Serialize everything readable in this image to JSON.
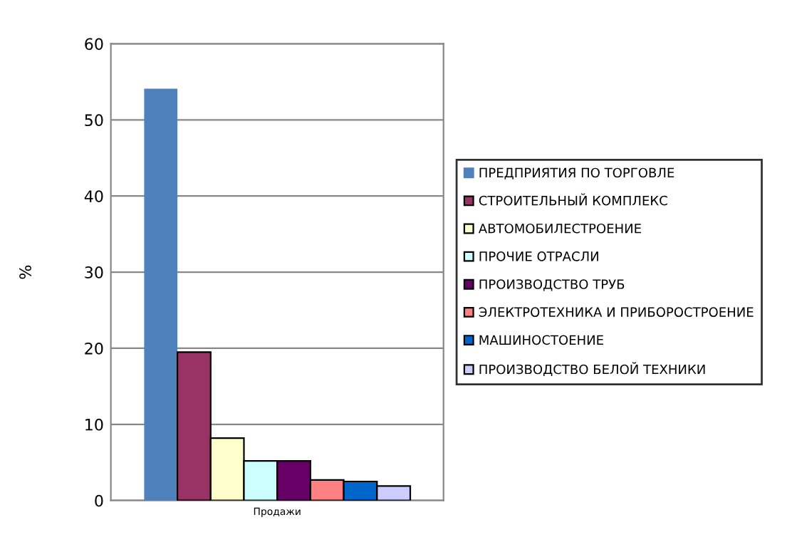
{
  "chart_data": {
    "type": "bar",
    "categories": [
      "Продажи"
    ],
    "ylabel": "%",
    "ylim": [
      0,
      60
    ],
    "yticks": [
      0,
      10,
      20,
      30,
      40,
      50,
      60
    ],
    "grid": "y",
    "legend": "right",
    "series": [
      {
        "name": "ПРЕДПРИЯТИЯ ПО ТОРГОВЛЕ",
        "color": "#4f81bd",
        "values": [
          54.1
        ]
      },
      {
        "name": "СТРОИТЕЛЬНЫЙ КОМПЛЕКС",
        "color": "#993366",
        "values": [
          19.5
        ]
      },
      {
        "name": "АВТОМОБИЛЕСТРОЕНИЕ",
        "color": "#ffffcc",
        "values": [
          8.2
        ]
      },
      {
        "name": "ПРОЧИЕ ОТРАСЛИ",
        "color": "#ccffff",
        "values": [
          5.2
        ]
      },
      {
        "name": "ПРОИЗВОДСТВО ТРУБ",
        "color": "#660066",
        "values": [
          5.2
        ]
      },
      {
        "name": "ЭЛЕКТРОТЕХНИКА И ПРИБОРОСТРОЕНИЕ",
        "color": "#ff8080",
        "values": [
          2.7
        ]
      },
      {
        "name": "МАШИНОСТОЕНИЕ",
        "color": "#0066cc",
        "values": [
          2.5
        ]
      },
      {
        "name": "ПРОИЗВОДСТВО БЕЛОЙ ТЕХНИКИ",
        "color": "#ccccff",
        "values": [
          1.9
        ]
      }
    ]
  }
}
